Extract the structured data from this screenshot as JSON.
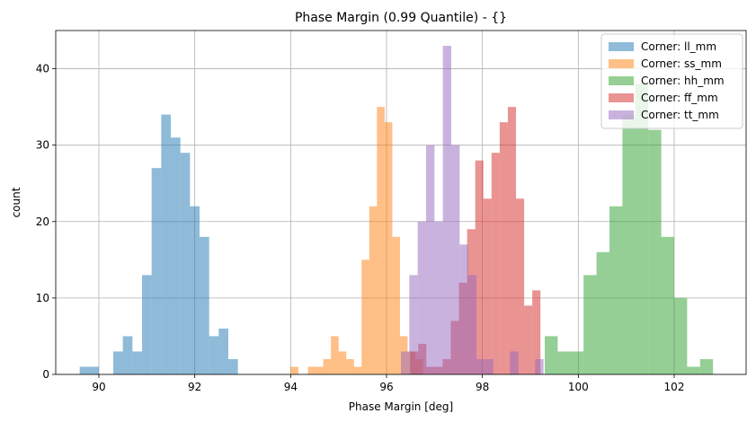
{
  "chart_data": {
    "type": "bar",
    "subtype": "histogram",
    "title": "Phase Margin (0.99 Quantile) - {}",
    "xlabel": "Phase Margin [deg]",
    "ylabel": "count",
    "xlim": [
      89.1,
      103.5
    ],
    "ylim": [
      0,
      45
    ],
    "xticks": [
      90,
      92,
      94,
      96,
      98,
      100,
      102
    ],
    "yticks": [
      0,
      10,
      20,
      30,
      40
    ],
    "grid": true,
    "legend_position": "top-right",
    "bar_opacity": 0.5,
    "series": [
      {
        "name": "Corner: ll_mm",
        "color": "#1f77b4",
        "bin_width": 0.2,
        "bins": [
          {
            "x": 89.6,
            "count": 1
          },
          {
            "x": 89.8,
            "count": 1
          },
          {
            "x": 90.3,
            "count": 3
          },
          {
            "x": 90.5,
            "count": 5
          },
          {
            "x": 90.7,
            "count": 3
          },
          {
            "x": 90.9,
            "count": 13
          },
          {
            "x": 91.1,
            "count": 27
          },
          {
            "x": 91.3,
            "count": 34
          },
          {
            "x": 91.5,
            "count": 31
          },
          {
            "x": 91.7,
            "count": 29
          },
          {
            "x": 91.9,
            "count": 22
          },
          {
            "x": 92.1,
            "count": 18
          },
          {
            "x": 92.3,
            "count": 5
          },
          {
            "x": 92.5,
            "count": 6
          },
          {
            "x": 92.7,
            "count": 2
          }
        ]
      },
      {
        "name": "Corner: ss_mm",
        "color": "#ff7f0e",
        "bin_width": 0.16,
        "bins": [
          {
            "x": 94.0,
            "count": 1
          },
          {
            "x": 94.36,
            "count": 1
          },
          {
            "x": 94.52,
            "count": 1
          },
          {
            "x": 94.68,
            "count": 2
          },
          {
            "x": 94.84,
            "count": 5
          },
          {
            "x": 95.0,
            "count": 3
          },
          {
            "x": 95.16,
            "count": 2
          },
          {
            "x": 95.32,
            "count": 1
          },
          {
            "x": 95.48,
            "count": 15
          },
          {
            "x": 95.64,
            "count": 22
          },
          {
            "x": 95.8,
            "count": 35
          },
          {
            "x": 95.96,
            "count": 33
          },
          {
            "x": 96.12,
            "count": 18
          },
          {
            "x": 96.28,
            "count": 5
          },
          {
            "x": 96.44,
            "count": 3
          },
          {
            "x": 96.6,
            "count": 2
          }
        ]
      },
      {
        "name": "Corner: hh_mm",
        "color": "#2ca02c",
        "bin_width": 0.27,
        "bins": [
          {
            "x": 99.3,
            "count": 5
          },
          {
            "x": 99.57,
            "count": 3
          },
          {
            "x": 99.84,
            "count": 3
          },
          {
            "x": 100.11,
            "count": 13
          },
          {
            "x": 100.38,
            "count": 16
          },
          {
            "x": 100.65,
            "count": 22
          },
          {
            "x": 100.92,
            "count": 34
          },
          {
            "x": 101.19,
            "count": 38
          },
          {
            "x": 101.46,
            "count": 32
          },
          {
            "x": 101.73,
            "count": 18
          },
          {
            "x": 102.0,
            "count": 10
          },
          {
            "x": 102.27,
            "count": 1
          },
          {
            "x": 102.54,
            "count": 2
          }
        ]
      },
      {
        "name": "Corner: ff_mm",
        "color": "#d62728",
        "bin_width": 0.17,
        "bins": [
          {
            "x": 96.49,
            "count": 3
          },
          {
            "x": 96.66,
            "count": 4
          },
          {
            "x": 96.83,
            "count": 1
          },
          {
            "x": 97.0,
            "count": 1
          },
          {
            "x": 97.17,
            "count": 2
          },
          {
            "x": 97.34,
            "count": 7
          },
          {
            "x": 97.51,
            "count": 12
          },
          {
            "x": 97.68,
            "count": 19
          },
          {
            "x": 97.85,
            "count": 28
          },
          {
            "x": 98.02,
            "count": 23
          },
          {
            "x": 98.19,
            "count": 29
          },
          {
            "x": 98.36,
            "count": 33
          },
          {
            "x": 98.53,
            "count": 35
          },
          {
            "x": 98.7,
            "count": 23
          },
          {
            "x": 98.87,
            "count": 9
          },
          {
            "x": 99.04,
            "count": 11
          }
        ]
      },
      {
        "name": "Corner: tt_mm",
        "color": "#9467bd",
        "bin_width": 0.175,
        "bins": [
          {
            "x": 96.3,
            "count": 3
          },
          {
            "x": 96.475,
            "count": 13
          },
          {
            "x": 96.65,
            "count": 20
          },
          {
            "x": 96.825,
            "count": 30
          },
          {
            "x": 97.0,
            "count": 20
          },
          {
            "x": 97.175,
            "count": 43
          },
          {
            "x": 97.35,
            "count": 30
          },
          {
            "x": 97.525,
            "count": 17
          },
          {
            "x": 97.7,
            "count": 13
          },
          {
            "x": 97.875,
            "count": 2
          },
          {
            "x": 98.05,
            "count": 2
          },
          {
            "x": 98.575,
            "count": 3
          },
          {
            "x": 99.1,
            "count": 2
          }
        ]
      }
    ]
  }
}
